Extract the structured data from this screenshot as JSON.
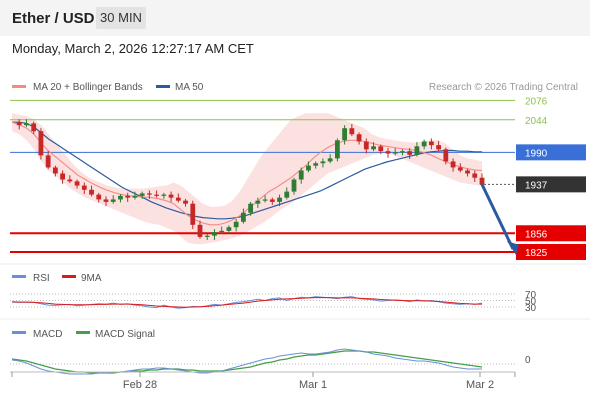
{
  "header": {
    "title": "Ether / USD",
    "interval": "30 MIN"
  },
  "datetime": "Monday, March 2, 2026 12:27:17 AM CET",
  "copyright": "Research © 2026 Trading Central",
  "colors": {
    "up": "#2e7d32",
    "down": "#c62828",
    "bands": "#fbd7d7",
    "ma20": "#f28b82",
    "ma50": "#2c5aa0",
    "resist": "#8bc34a",
    "pivot": "#3a6fd8",
    "support": "#e50000",
    "current": "#333333",
    "arrow": "#2c5aa0",
    "rsi": "#6b8fd6",
    "rsi_ma": "#d81b1b",
    "macd": "#6b8fd6",
    "macd_signal": "#43a047"
  },
  "chart_data": [
    {
      "type": "candlestick",
      "title": "",
      "legend": [
        "MA 20 + Bollinger Bands",
        "MA 50"
      ],
      "x_ticks": [
        "Feb 28",
        "Mar 1",
        "Mar 2"
      ],
      "levels": [
        {
          "value": 2076,
          "label": "2076",
          "kind": "resistance"
        },
        {
          "value": 2044,
          "label": "2044",
          "kind": "resistance"
        },
        {
          "value": 1990,
          "label": "1990",
          "kind": "pivot"
        },
        {
          "value": 1937,
          "label": "1937",
          "kind": "current"
        },
        {
          "value": 1856,
          "label": "1856",
          "kind": "support"
        },
        {
          "value": 1825,
          "label": "1825",
          "kind": "support"
        }
      ],
      "ylim": [
        1820,
        2085
      ],
      "close_path": [
        2040,
        2035,
        2038,
        2025,
        1985,
        1965,
        1955,
        1945,
        1942,
        1935,
        1928,
        1920,
        1912,
        1908,
        1912,
        1918,
        1915,
        1918,
        1922,
        1920,
        1918,
        1920,
        1915,
        1910,
        1905,
        1870,
        1850,
        1852,
        1858,
        1860,
        1866,
        1875,
        1890,
        1905,
        1910,
        1912,
        1908,
        1915,
        1925,
        1945,
        1960,
        1968,
        1972,
        1975,
        1980,
        2010,
        2030,
        2020,
        2008,
        1995,
        2000,
        1992,
        1988,
        1990,
        1992,
        1986,
        2000,
        2008,
        2002,
        1995,
        1975,
        1965,
        1960,
        1955,
        1948,
        1937
      ],
      "ma_path": [
        2040,
        2036,
        2030,
        2020,
        2005,
        1992,
        1982,
        1972,
        1962,
        1952,
        1945,
        1938,
        1932,
        1927,
        1923,
        1920,
        1918,
        1917,
        1916,
        1915,
        1913,
        1910,
        1905,
        1895,
        1885,
        1878,
        1873,
        1870,
        1870,
        1873,
        1878,
        1885,
        1895,
        1905,
        1915,
        1925,
        1932,
        1940,
        1948,
        1958,
        1968,
        1980,
        1990,
        1998,
        2004,
        2008,
        2010,
        2010,
        2008,
        2005,
        2002,
        2000,
        1998,
        1996,
        1995,
        1993,
        1990,
        1986,
        1980,
        1975,
        1970,
        1966,
        1963,
        1961,
        1960
      ],
      "ma50_path": [
        2040,
        2040,
        2038,
        2032,
        2022,
        2012,
        2004,
        1996,
        1988,
        1980,
        1972,
        1964,
        1956,
        1948,
        1940,
        1932,
        1926,
        1920,
        1914,
        1908,
        1903,
        1898,
        1894,
        1890,
        1887,
        1884,
        1882,
        1881,
        1880,
        1880,
        1881,
        1883,
        1886,
        1890,
        1894,
        1898,
        1902,
        1906,
        1910,
        1914,
        1918,
        1922,
        1926,
        1932,
        1938,
        1944,
        1950,
        1956,
        1962,
        1966,
        1970,
        1974,
        1977,
        1980,
        1983,
        1986,
        1989,
        1991,
        1992,
        1993,
        1993,
        1992,
        1992,
        1991,
        1991
      ],
      "band_up": [
        2055,
        2052,
        2050,
        2045,
        2035,
        2020,
        2005,
        1990,
        1975,
        1962,
        1952,
        1945,
        1940,
        1935,
        1932,
        1930,
        1930,
        1930,
        1930,
        1932,
        1934,
        1935,
        1940,
        1935,
        1925,
        1915,
        1905,
        1900,
        1900,
        1902,
        1910,
        1925,
        1945,
        1965,
        1985,
        2000,
        2015,
        2030,
        2045,
        2050,
        2055,
        2055,
        2055,
        2055,
        2050,
        2045,
        2040,
        2035,
        2030,
        2020,
        2015,
        2012,
        2010,
        2008,
        2007,
        2006,
        2008,
        2010,
        2010,
        2005,
        1995,
        1985,
        1980,
        1978,
        1975
      ],
      "band_dn": [
        2025,
        2020,
        2010,
        1995,
        1975,
        1960,
        1950,
        1940,
        1930,
        1922,
        1915,
        1910,
        1905,
        1900,
        1895,
        1890,
        1885,
        1880,
        1875,
        1872,
        1870,
        1865,
        1860,
        1850,
        1840,
        1838,
        1838,
        1840,
        1842,
        1845,
        1848,
        1852,
        1858,
        1865,
        1872,
        1880,
        1890,
        1898,
        1905,
        1915,
        1925,
        1935,
        1945,
        1955,
        1960,
        1965,
        1970,
        1975,
        1980,
        1985,
        1988,
        1990,
        1985,
        1980,
        1975,
        1970,
        1965,
        1960,
        1955,
        1950,
        1945,
        1940,
        1938,
        1936,
        1935
      ]
    },
    {
      "type": "line",
      "title": "RSI",
      "legend": [
        "RSI",
        "9MA"
      ],
      "levels": [
        70,
        50,
        30
      ],
      "ylim": [
        20,
        80
      ],
      "rsi_path": [
        45,
        44,
        45,
        44,
        40,
        36,
        35,
        37,
        38,
        34,
        36,
        38,
        40,
        39,
        42,
        38,
        40,
        36,
        34,
        30,
        28,
        36,
        30,
        26,
        28,
        32,
        30,
        34,
        38,
        36,
        40,
        44,
        46,
        50,
        54,
        50,
        56,
        58,
        50,
        56,
        60,
        58,
        62,
        60,
        58,
        56,
        60,
        62,
        56,
        54,
        52,
        48,
        50,
        52,
        50,
        46,
        52,
        48,
        50,
        46,
        42,
        40,
        38,
        40,
        38,
        42
      ],
      "ma_path": [
        46,
        45,
        45,
        44,
        43,
        41,
        39,
        38,
        37,
        37,
        37,
        37,
        38,
        38,
        39,
        39,
        39,
        38,
        37,
        35,
        33,
        32,
        31,
        30,
        29,
        30,
        31,
        32,
        34,
        36,
        38,
        40,
        42,
        45,
        48,
        50,
        52,
        54,
        55,
        56,
        57,
        58,
        59,
        59,
        59,
        58,
        58,
        58,
        57,
        56,
        55,
        53,
        52,
        51,
        50,
        49,
        49,
        49,
        48,
        47,
        45,
        43,
        41,
        40,
        39,
        39
      ]
    },
    {
      "type": "line",
      "title": "MACD",
      "legend": [
        "MACD",
        "MACD Signal"
      ],
      "levels": [
        0
      ],
      "ylim": [
        -16,
        18
      ],
      "macd_path": [
        4,
        3,
        1,
        -2,
        -5,
        -7,
        -8,
        -9,
        -10,
        -10,
        -10,
        -10,
        -9,
        -9,
        -8,
        -8,
        -7,
        -6,
        -5,
        -5,
        -4,
        -4,
        -5,
        -6,
        -7,
        -8,
        -9,
        -9,
        -8,
        -7,
        -5,
        -3,
        -1,
        1,
        3,
        5,
        6,
        8,
        9,
        10,
        11,
        10,
        10,
        11,
        12,
        14,
        15,
        14,
        13,
        12,
        10,
        9,
        8,
        6,
        5,
        4,
        3,
        3,
        2,
        1,
        -1,
        -3,
        -4,
        -5,
        -5,
        -5
      ],
      "signal_path": [
        5,
        4,
        3,
        1,
        -1,
        -3,
        -5,
        -6,
        -7,
        -8,
        -8,
        -9,
        -9,
        -9,
        -9,
        -8,
        -8,
        -7,
        -7,
        -6,
        -6,
        -5,
        -5,
        -5,
        -6,
        -6,
        -7,
        -7,
        -7,
        -7,
        -6,
        -5,
        -4,
        -3,
        -1,
        1,
        2,
        4,
        5,
        7,
        8,
        9,
        9,
        10,
        11,
        12,
        13,
        13,
        13,
        12,
        12,
        11,
        10,
        9,
        8,
        7,
        6,
        5,
        4,
        3,
        2,
        1,
        0,
        -1,
        -2,
        -3
      ]
    }
  ]
}
